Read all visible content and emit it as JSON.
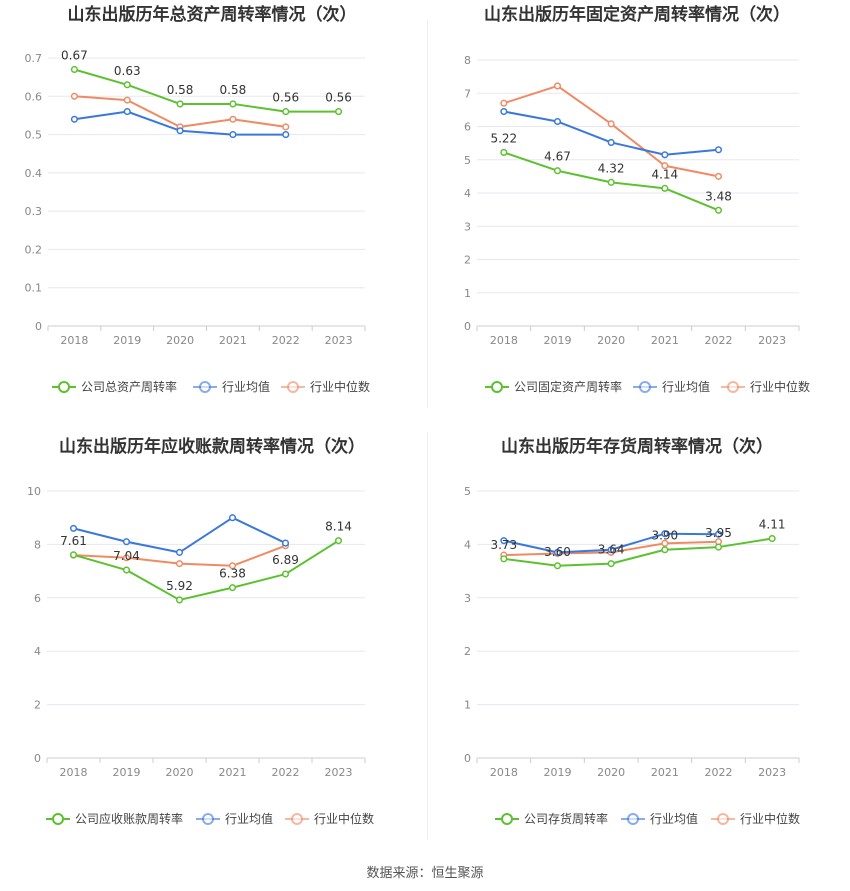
{
  "colors": {
    "company": "#5cc12f",
    "industry_avg": "#3a78dc",
    "industry_median": "#f08a63",
    "grid": "#e6e8f0",
    "axis_text": "#888888",
    "title_text": "#333333"
  },
  "source_text": "数据来源：恒生聚源",
  "chart_data": [
    {
      "type": "line",
      "title": "山东出版历年总资产周转率情况（次）",
      "x": [
        "2018",
        "2019",
        "2020",
        "2021",
        "2022",
        "2023"
      ],
      "yticks": [
        "0",
        "0.1",
        "0.2",
        "0.3",
        "0.4",
        "0.5",
        "0.6",
        "0.7"
      ],
      "ylim": [
        0,
        0.7
      ],
      "series": [
        {
          "name": "公司总资产周转率",
          "color": "#5cc12f",
          "values": [
            0.67,
            0.63,
            0.58,
            0.58,
            0.56,
            0.56
          ],
          "labels": [
            "0.67",
            "0.63",
            "0.58",
            "0.58",
            "0.56",
            "0.56"
          ]
        },
        {
          "name": "行业均值",
          "color": "#3a78dc",
          "values": [
            0.54,
            0.56,
            0.51,
            0.5,
            0.5,
            null
          ]
        },
        {
          "name": "行业中位数",
          "color": "#f08a63",
          "values": [
            0.6,
            0.59,
            0.52,
            0.54,
            0.52,
            null
          ]
        }
      ]
    },
    {
      "type": "line",
      "title": "山东出版历年固定资产周转率情况（次）",
      "x": [
        "2018",
        "2019",
        "2020",
        "2021",
        "2022",
        "2023"
      ],
      "yticks": [
        "0",
        "1",
        "2",
        "3",
        "4",
        "5",
        "6",
        "7",
        "8"
      ],
      "ylim": [
        0,
        8
      ],
      "series": [
        {
          "name": "公司固定资产周转率",
          "color": "#5cc12f",
          "values": [
            5.22,
            4.67,
            4.32,
            4.14,
            3.48,
            null
          ],
          "labels": [
            "5.22",
            "4.67",
            "4.32",
            "4.14",
            "3.48",
            null
          ]
        },
        {
          "name": "行业均值",
          "color": "#3a78dc",
          "values": [
            6.45,
            6.15,
            5.52,
            5.15,
            5.3,
            null
          ]
        },
        {
          "name": "行业中位数",
          "color": "#f08a63",
          "values": [
            6.7,
            7.22,
            6.08,
            4.82,
            4.5,
            null
          ]
        }
      ]
    },
    {
      "type": "line",
      "title": "山东出版历年应收账款周转率情况（次）",
      "x": [
        "2018",
        "2019",
        "2020",
        "2021",
        "2022",
        "2023"
      ],
      "yticks": [
        "0",
        "2",
        "4",
        "6",
        "8",
        "10"
      ],
      "ylim": [
        0,
        10
      ],
      "series": [
        {
          "name": "公司应收账款周转率",
          "color": "#5cc12f",
          "values": [
            7.61,
            7.04,
            5.92,
            6.38,
            6.89,
            8.14
          ],
          "labels": [
            "7.61",
            "7.04",
            "5.92",
            "6.38",
            "6.89",
            "8.14"
          ]
        },
        {
          "name": "行业均值",
          "color": "#3a78dc",
          "values": [
            8.6,
            8.1,
            7.7,
            9.0,
            8.05,
            null
          ]
        },
        {
          "name": "行业中位数",
          "color": "#f08a63",
          "values": [
            7.6,
            7.5,
            7.28,
            7.2,
            7.95,
            null
          ]
        }
      ]
    },
    {
      "type": "line",
      "title": "山东出版历年存货周转率情况（次）",
      "x": [
        "2018",
        "2019",
        "2020",
        "2021",
        "2022",
        "2023"
      ],
      "yticks": [
        "0",
        "1",
        "2",
        "3",
        "4",
        "5"
      ],
      "ylim": [
        0,
        5
      ],
      "series": [
        {
          "name": "公司存货周转率",
          "color": "#5cc12f",
          "values": [
            3.73,
            3.6,
            3.64,
            3.9,
            3.95,
            4.11
          ],
          "labels": [
            "3.73",
            "3.60",
            "3.64",
            "3.90",
            "3.95",
            "4.11"
          ]
        },
        {
          "name": "行业均值",
          "color": "#3a78dc",
          "values": [
            4.07,
            3.85,
            3.9,
            4.2,
            4.19,
            null
          ]
        },
        {
          "name": "行业中位数",
          "color": "#f08a63",
          "values": [
            3.8,
            3.83,
            3.85,
            4.02,
            4.05,
            null
          ]
        }
      ]
    }
  ]
}
